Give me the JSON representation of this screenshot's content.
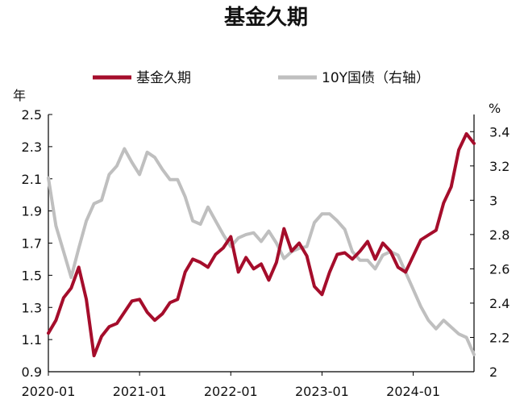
{
  "chart_data": {
    "type": "line",
    "title": "基金久期",
    "y_left_unit": "年",
    "y_right_unit": "%",
    "ylim_left": [
      0.9,
      2.5
    ],
    "ylim_right": [
      2.0,
      3.5
    ],
    "x_range": [
      "2020-01",
      "2024-09"
    ],
    "y_left_ticks": [
      "0.9",
      "1.1",
      "1.3",
      "1.5",
      "1.7",
      "1.9",
      "2.1",
      "2.3",
      "2.5"
    ],
    "y_right_ticks": [
      "2",
      "2.2",
      "2.4",
      "2.6",
      "2.8",
      "3",
      "3.2",
      "3.4"
    ],
    "x_ticks": [
      "2020-01",
      "2021-01",
      "2022-01",
      "2023-01",
      "2024-01"
    ],
    "legend_position": "top",
    "grid": false,
    "series": [
      {
        "name": "基金久期",
        "axis": "left",
        "color": "#a50d2b",
        "x": [
          "2020-01",
          "2020-02",
          "2020-03",
          "2020-04",
          "2020-05",
          "2020-06",
          "2020-07",
          "2020-08",
          "2020-09",
          "2020-10",
          "2020-11",
          "2020-12",
          "2021-01",
          "2021-02",
          "2021-03",
          "2021-04",
          "2021-05",
          "2021-06",
          "2021-07",
          "2021-08",
          "2021-09",
          "2021-10",
          "2021-11",
          "2021-12",
          "2022-01",
          "2022-02",
          "2022-03",
          "2022-04",
          "2022-05",
          "2022-06",
          "2022-07",
          "2022-08",
          "2022-09",
          "2022-10",
          "2022-11",
          "2022-12",
          "2023-01",
          "2023-02",
          "2023-03",
          "2023-04",
          "2023-05",
          "2023-06",
          "2023-07",
          "2023-08",
          "2023-09",
          "2023-10",
          "2023-11",
          "2023-12",
          "2024-01",
          "2024-02",
          "2024-03",
          "2024-04",
          "2024-05",
          "2024-06",
          "2024-07",
          "2024-08",
          "2024-09"
        ],
        "values": [
          1.14,
          1.22,
          1.36,
          1.42,
          1.55,
          1.35,
          1.0,
          1.12,
          1.18,
          1.2,
          1.27,
          1.34,
          1.35,
          1.27,
          1.22,
          1.26,
          1.33,
          1.35,
          1.52,
          1.6,
          1.58,
          1.55,
          1.63,
          1.67,
          1.74,
          1.52,
          1.61,
          1.54,
          1.57,
          1.47,
          1.58,
          1.79,
          1.65,
          1.7,
          1.62,
          1.43,
          1.38,
          1.52,
          1.63,
          1.64,
          1.6,
          1.65,
          1.71,
          1.6,
          1.7,
          1.65,
          1.55,
          1.52,
          1.62,
          1.72,
          1.75,
          1.78,
          1.95,
          2.05,
          2.28,
          2.38,
          2.32
        ]
      },
      {
        "name": "10Y国债（右轴）",
        "axis": "right",
        "color": "#bfbfbf",
        "x": [
          "2020-01",
          "2020-02",
          "2020-03",
          "2020-04",
          "2020-05",
          "2020-06",
          "2020-07",
          "2020-08",
          "2020-09",
          "2020-10",
          "2020-11",
          "2020-12",
          "2021-01",
          "2021-02",
          "2021-03",
          "2021-04",
          "2021-05",
          "2021-06",
          "2021-07",
          "2021-08",
          "2021-09",
          "2021-10",
          "2021-11",
          "2021-12",
          "2022-01",
          "2022-02",
          "2022-03",
          "2022-04",
          "2022-05",
          "2022-06",
          "2022-07",
          "2022-08",
          "2022-09",
          "2022-10",
          "2022-11",
          "2022-12",
          "2023-01",
          "2023-02",
          "2023-03",
          "2023-04",
          "2023-05",
          "2023-06",
          "2023-07",
          "2023-08",
          "2023-09",
          "2023-10",
          "2023-11",
          "2023-12",
          "2024-01",
          "2024-02",
          "2024-03",
          "2024-04",
          "2024-05",
          "2024-06",
          "2024-07",
          "2024-08",
          "2024-09"
        ],
        "values": [
          3.13,
          2.85,
          2.7,
          2.55,
          2.72,
          2.88,
          2.98,
          3.0,
          3.15,
          3.2,
          3.3,
          3.22,
          3.15,
          3.28,
          3.25,
          3.18,
          3.12,
          3.12,
          3.02,
          2.88,
          2.86,
          2.96,
          2.88,
          2.8,
          2.73,
          2.78,
          2.8,
          2.81,
          2.76,
          2.82,
          2.75,
          2.66,
          2.7,
          2.72,
          2.73,
          2.87,
          2.92,
          2.92,
          2.88,
          2.83,
          2.7,
          2.65,
          2.65,
          2.6,
          2.68,
          2.7,
          2.68,
          2.58,
          2.48,
          2.38,
          2.3,
          2.25,
          2.3,
          2.26,
          2.22,
          2.2,
          2.1
        ]
      }
    ]
  }
}
